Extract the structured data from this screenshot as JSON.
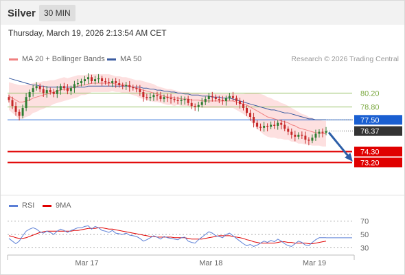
{
  "header": {
    "symbol": "Silver",
    "timeframe": "30 MIN",
    "datetime": "Thursday, March 19, 2026 2:13:54 AM CET"
  },
  "legend": {
    "ma20_bb": "MA 20 + Bollinger Bands",
    "ma50": "MA 50",
    "rsi": "RSI",
    "rsi_ma": "9MA",
    "credit": "Research © 2026 Trading Central"
  },
  "colors": {
    "ma20": "#f08080",
    "bands": "#fde0e0",
    "ma50": "#3a5ba0",
    "up": "#2e7d32",
    "down": "#c62828",
    "resistance": "#9ac36b",
    "pivot": "#1a5fd1",
    "support": "#e00000",
    "last": "#333333",
    "rsi": "#5b7fd6",
    "rsi_ma": "#e00000",
    "arrow": "#2d5fa8"
  },
  "chart_data": {
    "type": "candlestick",
    "symbol": "Silver",
    "timeframe": "30 MIN",
    "x_tick_labels": [
      "Mar 17",
      "Mar 18",
      "Mar 19"
    ],
    "ylim": [
      72.6,
      83.0
    ],
    "last_price": 76.37,
    "levels": [
      {
        "value": 80.2,
        "label": "80.20",
        "kind": "resistance"
      },
      {
        "value": 78.8,
        "label": "78.80",
        "kind": "resistance"
      },
      {
        "value": 77.5,
        "label": "77.50",
        "kind": "pivot"
      },
      {
        "value": 74.3,
        "label": "74.30",
        "kind": "support"
      },
      {
        "value": 73.2,
        "label": "73.20",
        "kind": "support"
      }
    ],
    "forecast": {
      "from": 76.37,
      "to": 73.2,
      "direction": "down"
    },
    "close": [
      79.5,
      78.9,
      78.3,
      77.9,
      78.7,
      79.8,
      80.3,
      80.7,
      80.9,
      80.6,
      80.2,
      80.5,
      80.3,
      80.1,
      80.5,
      80.9,
      80.7,
      80.4,
      80.7,
      81.1,
      81.2,
      81.4,
      81.6,
      81.8,
      81.4,
      81.6,
      81.7,
      81.4,
      81.3,
      81.2,
      81.4,
      81.2,
      81.0,
      80.9,
      81.0,
      80.8,
      80.7,
      80.6,
      80.3,
      79.8,
      79.7,
      79.8,
      80.0,
      79.9,
      79.6,
      79.8,
      79.7,
      79.6,
      79.5,
      79.4,
      79.5,
      79.6,
      79.2,
      78.9,
      78.8,
      79.0,
      79.3,
      79.6,
      79.9,
      79.8,
      79.6,
      79.5,
      79.4,
      79.7,
      79.9,
      79.7,
      79.4,
      79.1,
      78.7,
      78.2,
      77.8,
      77.2,
      76.8,
      76.7,
      76.9,
      76.8,
      77.0,
      76.9,
      77.2,
      77.0,
      76.6,
      76.3,
      76.0,
      75.8,
      76.0,
      75.9,
      75.5,
      75.4,
      75.7,
      76.1,
      76.3,
      76.2,
      76.37
    ],
    "ma20": [
      79.9,
      79.7,
      79.5,
      79.3,
      79.3,
      79.4,
      79.5,
      79.7,
      79.8,
      79.9,
      80.0,
      80.1,
      80.2,
      80.3,
      80.4,
      80.5,
      80.6,
      80.6,
      80.7,
      80.8,
      80.9,
      81.0,
      81.0,
      81.1,
      81.2,
      81.2,
      81.2,
      81.2,
      81.2,
      81.2,
      81.2,
      81.1,
      81.1,
      81.0,
      81.0,
      80.9,
      80.8,
      80.7,
      80.6,
      80.5,
      80.4,
      80.3,
      80.2,
      80.1,
      80.0,
      79.9,
      79.8,
      79.8,
      79.7,
      79.7,
      79.6,
      79.6,
      79.6,
      79.5,
      79.5,
      79.5,
      79.4,
      79.4,
      79.4,
      79.4,
      79.4,
      79.4,
      79.4,
      79.4,
      79.4,
      79.4,
      79.3,
      79.2,
      79.1,
      79.0,
      78.8,
      78.6,
      78.4,
      78.2,
      78.0,
      77.8,
      77.7,
      77.6,
      77.5,
      77.4,
      77.3,
      77.2,
      77.0,
      76.9,
      76.7,
      76.6,
      76.5,
      76.4,
      76.3,
      76.2,
      76.2,
      76.1,
      76.1
    ],
    "ma50": [
      81.7,
      81.6,
      81.5,
      81.4,
      81.3,
      81.2,
      81.1,
      81.0,
      81.0,
      80.9,
      80.9,
      80.8,
      80.8,
      80.8,
      80.8,
      80.8,
      80.8,
      80.8,
      80.8,
      80.8,
      80.8,
      80.8,
      80.8,
      80.9,
      80.9,
      80.9,
      80.9,
      80.9,
      80.9,
      80.9,
      80.9,
      80.9,
      80.9,
      80.9,
      80.9,
      80.9,
      80.8,
      80.8,
      80.8,
      80.7,
      80.7,
      80.6,
      80.6,
      80.5,
      80.5,
      80.4,
      80.4,
      80.3,
      80.3,
      80.2,
      80.2,
      80.1,
      80.1,
      80.0,
      80.0,
      80.0,
      79.9,
      79.9,
      79.9,
      79.8,
      79.8,
      79.8,
      79.7,
      79.7,
      79.7,
      79.6,
      79.5,
      79.4,
      79.3,
      79.2,
      79.1,
      79.0,
      78.9,
      78.8,
      78.7,
      78.6,
      78.5,
      78.5,
      78.4,
      78.3,
      78.2,
      78.2,
      78.1,
      78.0,
      77.9,
      77.8,
      77.7,
      77.6,
      77.6,
      77.5,
      77.5,
      77.5,
      77.5
    ],
    "bb_width": [
      1.4,
      1.5,
      1.6,
      1.7,
      1.7,
      1.6,
      1.6,
      1.5,
      1.5,
      1.4,
      1.4,
      1.3,
      1.3,
      1.2,
      1.2,
      1.2,
      1.2,
      1.1,
      1.1,
      1.1,
      1.1,
      1.0,
      1.0,
      1.0,
      0.9,
      0.9,
      0.9,
      0.9,
      0.9,
      0.9,
      0.8,
      0.8,
      0.8,
      0.8,
      0.8,
      0.8,
      0.8,
      0.8,
      0.9,
      0.9,
      0.9,
      0.9,
      0.9,
      0.8,
      0.8,
      0.8,
      0.8,
      0.8,
      0.8,
      0.7,
      0.7,
      0.7,
      0.7,
      0.7,
      0.7,
      0.7,
      0.7,
      0.7,
      0.7,
      0.7,
      0.7,
      0.7,
      0.7,
      0.7,
      0.7,
      0.7,
      0.8,
      0.9,
      1.0,
      1.2,
      1.4,
      1.6,
      1.8,
      1.9,
      2.0,
      2.0,
      2.0,
      1.9,
      1.9,
      1.8,
      1.8,
      1.7,
      1.7,
      1.6,
      1.6,
      1.5,
      1.5,
      1.4,
      1.4,
      1.3,
      1.3,
      1.3,
      1.3
    ],
    "rsi": {
      "levels": [
        70,
        50,
        30
      ],
      "rsi": [
        44,
        40,
        36,
        40,
        48,
        55,
        58,
        60,
        58,
        54,
        52,
        55,
        53,
        50,
        55,
        58,
        56,
        53,
        56,
        58,
        60,
        60,
        62,
        63,
        58,
        62,
        60,
        56,
        55,
        53,
        56,
        52,
        51,
        50,
        52,
        49,
        48,
        47,
        44,
        40,
        42,
        45,
        48,
        46,
        43,
        47,
        45,
        44,
        43,
        42,
        45,
        46,
        40,
        38,
        37,
        42,
        46,
        50,
        54,
        52,
        48,
        47,
        45,
        50,
        52,
        48,
        44,
        40,
        36,
        33,
        35,
        32,
        34,
        37,
        40,
        38,
        41,
        39,
        43,
        40,
        36,
        33,
        32,
        36,
        40,
        38,
        34,
        33,
        38,
        42,
        45,
        45,
        45
      ],
      "ma9": [
        48,
        47,
        45,
        44,
        44,
        45,
        47,
        49,
        51,
        53,
        54,
        55,
        55,
        55,
        55,
        55,
        55,
        55,
        55,
        56,
        56,
        57,
        58,
        59,
        59,
        59,
        60,
        60,
        59,
        58,
        58,
        57,
        56,
        55,
        54,
        53,
        52,
        51,
        50,
        49,
        48,
        47,
        47,
        46,
        46,
        46,
        46,
        46,
        45,
        45,
        45,
        45,
        44,
        43,
        43,
        43,
        43,
        44,
        45,
        46,
        47,
        48,
        48,
        48,
        48,
        47,
        46,
        45,
        44,
        42,
        41,
        39,
        38,
        37,
        37,
        37,
        37,
        37,
        38,
        39,
        39,
        38,
        38,
        37,
        37,
        37,
        37,
        36,
        36,
        37,
        38,
        39,
        40
      ]
    }
  }
}
